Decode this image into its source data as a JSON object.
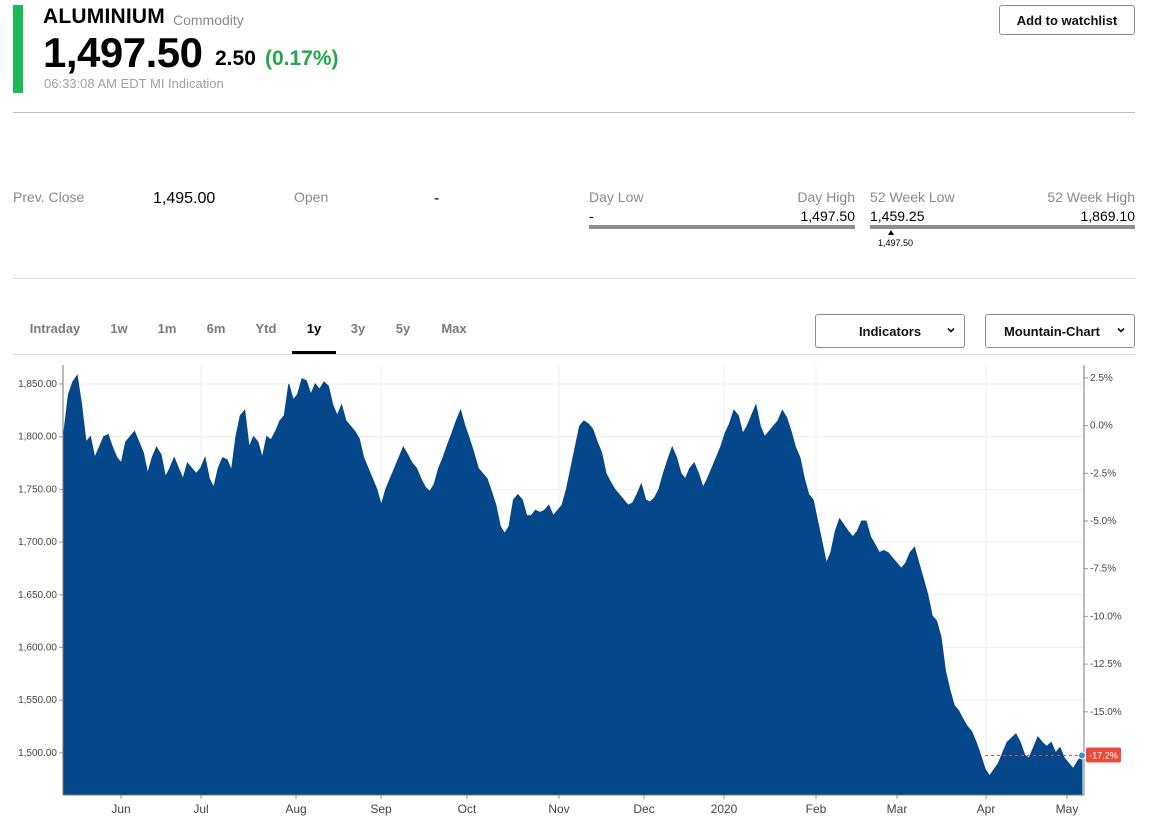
{
  "header": {
    "name": "ALUMINIUM",
    "asset_type": "Commodity",
    "price": "1,497.50",
    "change": "2.50",
    "change_pct": "(0.17%)",
    "timestamp": "06:33:08 AM EDT MI Indication",
    "watchlist_label": "Add to watchlist",
    "accent_color": "#1db954",
    "up_color": "#21a84a"
  },
  "stats": {
    "prev_close_label": "Prev. Close",
    "prev_close": "1,495.00",
    "open_label": "Open",
    "open": "-",
    "day_low_label": "Day Low",
    "day_high_label": "Day High",
    "day_low": "-",
    "day_high": "1,497.50",
    "wk52_low_label": "52 Week Low",
    "wk52_high_label": "52 Week High",
    "wk52_low": "1,459.25",
    "wk52_high": "1,869.10",
    "wk52_marker": "1,497.50"
  },
  "tabs": [
    "Intraday",
    "1w",
    "1m",
    "6m",
    "Ytd",
    "1y",
    "3y",
    "5y",
    "Max"
  ],
  "active_tab": "1y",
  "controls": {
    "indicators_label": "Indicators",
    "chart_type_label": "Mountain-Chart"
  },
  "chart_data": {
    "type": "area",
    "fill_color": "#04478a",
    "x_ticks": [
      "Jun",
      "Jul",
      "Aug",
      "Sep",
      "Oct",
      "Nov",
      "Dec",
      "2020",
      "Feb",
      "Mar",
      "Apr",
      "May"
    ],
    "y_ticks": [
      "1,850.00",
      "1,800.00",
      "1,750.00",
      "1,700.00",
      "1,650.00",
      "1,600.00",
      "1,550.00",
      "1,500.00"
    ],
    "y_right_ticks": [
      "2.5%",
      "0.0%",
      "-2.5%",
      "-5.0%",
      "-7.5%",
      "-10.0%",
      "-12.5%",
      "-15.0%"
    ],
    "ylim": [
      1460,
      1868
    ],
    "current_label": "-17.2%",
    "current_value": 1497.5,
    "values": [
      1805,
      1840,
      1852,
      1858,
      1830,
      1795,
      1800,
      1780,
      1790,
      1800,
      1802,
      1790,
      1780,
      1775,
      1795,
      1800,
      1805,
      1795,
      1785,
      1765,
      1780,
      1790,
      1783,
      1762,
      1770,
      1780,
      1770,
      1760,
      1775,
      1770,
      1765,
      1770,
      1780,
      1760,
      1752,
      1770,
      1780,
      1778,
      1768,
      1800,
      1820,
      1825,
      1790,
      1800,
      1795,
      1780,
      1800,
      1797,
      1805,
      1815,
      1820,
      1850,
      1835,
      1840,
      1855,
      1853,
      1840,
      1850,
      1845,
      1852,
      1848,
      1830,
      1820,
      1830,
      1815,
      1810,
      1805,
      1798,
      1780,
      1770,
      1760,
      1750,
      1735,
      1750,
      1760,
      1770,
      1780,
      1790,
      1783,
      1775,
      1770,
      1760,
      1752,
      1748,
      1755,
      1770,
      1780,
      1792,
      1803,
      1815,
      1825,
      1810,
      1798,
      1785,
      1770,
      1765,
      1760,
      1748,
      1735,
      1715,
      1708,
      1715,
      1740,
      1745,
      1740,
      1725,
      1725,
      1730,
      1728,
      1730,
      1735,
      1725,
      1730,
      1735,
      1750,
      1770,
      1790,
      1810,
      1815,
      1812,
      1807,
      1795,
      1785,
      1765,
      1757,
      1750,
      1745,
      1740,
      1735,
      1737,
      1745,
      1755,
      1740,
      1738,
      1742,
      1750,
      1765,
      1778,
      1790,
      1780,
      1765,
      1760,
      1770,
      1775,
      1765,
      1752,
      1760,
      1770,
      1780,
      1790,
      1803,
      1812,
      1825,
      1820,
      1803,
      1810,
      1820,
      1830,
      1810,
      1800,
      1805,
      1810,
      1815,
      1825,
      1818,
      1805,
      1790,
      1780,
      1760,
      1745,
      1740,
      1720,
      1700,
      1680,
      1690,
      1710,
      1722,
      1716,
      1710,
      1705,
      1710,
      1720,
      1720,
      1705,
      1698,
      1690,
      1692,
      1690,
      1685,
      1680,
      1675,
      1680,
      1690,
      1695,
      1680,
      1665,
      1650,
      1630,
      1625,
      1610,
      1578,
      1560,
      1545,
      1540,
      1532,
      1525,
      1520,
      1510,
      1498,
      1485,
      1478,
      1484,
      1490,
      1500,
      1510,
      1514,
      1518,
      1510,
      1498,
      1495,
      1505,
      1515,
      1510,
      1506,
      1510,
      1500,
      1505,
      1495,
      1490,
      1485,
      1492,
      1497.5
    ]
  }
}
